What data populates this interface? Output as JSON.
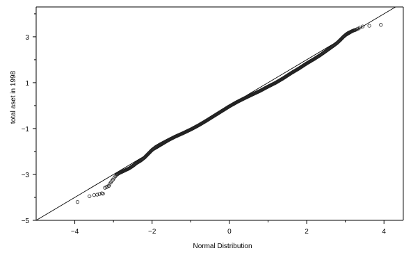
{
  "chart_data": {
    "type": "scatter",
    "title": "",
    "xlabel": "Normal Distribution",
    "ylabel": "total aset in 1998",
    "xlim": [
      -5,
      4.5
    ],
    "ylim": [
      -5,
      4.3
    ],
    "x_ticks_labeled": [
      -4,
      -2,
      0,
      2,
      4
    ],
    "x_ticks_minor": [
      -3,
      -1,
      1,
      3
    ],
    "y_ticks_labeled": [
      -5,
      -3,
      -1,
      1,
      3
    ],
    "y_ticks_minor": [
      -4,
      -2,
      0,
      2,
      4
    ],
    "x_tick_labels": [
      "−4",
      "−2",
      "0",
      "2",
      "4"
    ],
    "y_tick_labels": [
      "−5",
      "−3",
      "−1",
      "1",
      "3"
    ],
    "reference_line": {
      "slope": 1,
      "intercept": 0
    },
    "grid": false,
    "legend": "none",
    "marker": "open-circle",
    "series": [
      {
        "points": [
          [
            -3.93,
            -4.2
          ],
          [
            -3.62,
            -3.95
          ],
          [
            -3.5,
            -3.9
          ],
          [
            -3.42,
            -3.88
          ],
          [
            -3.36,
            -3.85
          ],
          [
            -3.3,
            -3.82
          ],
          [
            -3.27,
            -3.84
          ],
          [
            -3.22,
            -3.58
          ],
          [
            -3.18,
            -3.55
          ],
          [
            -3.15,
            -3.52
          ],
          [
            -3.12,
            -3.5
          ],
          [
            -3.1,
            -3.42
          ],
          [
            -3.07,
            -3.35
          ],
          [
            -3.04,
            -3.28
          ],
          [
            -3.01,
            -3.22
          ],
          [
            -2.98,
            -3.15
          ],
          [
            -2.95,
            -3.08
          ],
          [
            -2.92,
            -3.02
          ],
          [
            -2.88,
            -2.97
          ],
          [
            -2.84,
            -2.93
          ],
          [
            -2.8,
            -2.9
          ],
          [
            -2.75,
            -2.86
          ],
          [
            -2.7,
            -2.82
          ],
          [
            -2.6,
            -2.74
          ],
          [
            -2.5,
            -2.63
          ],
          [
            -2.4,
            -2.5
          ],
          [
            -2.3,
            -2.4
          ],
          [
            -2.2,
            -2.27
          ],
          [
            -2.1,
            -2.1
          ],
          [
            -2.0,
            -1.93
          ],
          [
            -1.9,
            -1.8
          ],
          [
            -1.8,
            -1.7
          ],
          [
            -1.6,
            -1.52
          ],
          [
            -1.4,
            -1.35
          ],
          [
            -1.2,
            -1.2
          ],
          [
            -1.0,
            -1.04
          ],
          [
            -0.8,
            -0.86
          ],
          [
            -0.6,
            -0.66
          ],
          [
            -0.4,
            -0.45
          ],
          [
            -0.2,
            -0.24
          ],
          [
            0.0,
            -0.03
          ],
          [
            0.2,
            0.16
          ],
          [
            0.4,
            0.33
          ],
          [
            0.6,
            0.49
          ],
          [
            0.8,
            0.65
          ],
          [
            1.0,
            0.83
          ],
          [
            1.2,
            1.0
          ],
          [
            1.4,
            1.2
          ],
          [
            1.6,
            1.42
          ],
          [
            1.8,
            1.62
          ],
          [
            2.0,
            1.84
          ],
          [
            2.2,
            2.04
          ],
          [
            2.35,
            2.2
          ],
          [
            2.5,
            2.38
          ],
          [
            2.6,
            2.5
          ],
          [
            2.7,
            2.62
          ],
          [
            2.8,
            2.75
          ],
          [
            2.88,
            2.88
          ],
          [
            2.95,
            3.0
          ],
          [
            3.02,
            3.1
          ],
          [
            3.08,
            3.17
          ],
          [
            3.13,
            3.21
          ],
          [
            3.18,
            3.25
          ],
          [
            3.22,
            3.28
          ],
          [
            3.26,
            3.3
          ],
          [
            3.3,
            3.33
          ],
          [
            3.34,
            3.36
          ],
          [
            3.38,
            3.4
          ],
          [
            3.45,
            3.45
          ],
          [
            3.62,
            3.48
          ],
          [
            3.92,
            3.52
          ]
        ]
      }
    ]
  }
}
